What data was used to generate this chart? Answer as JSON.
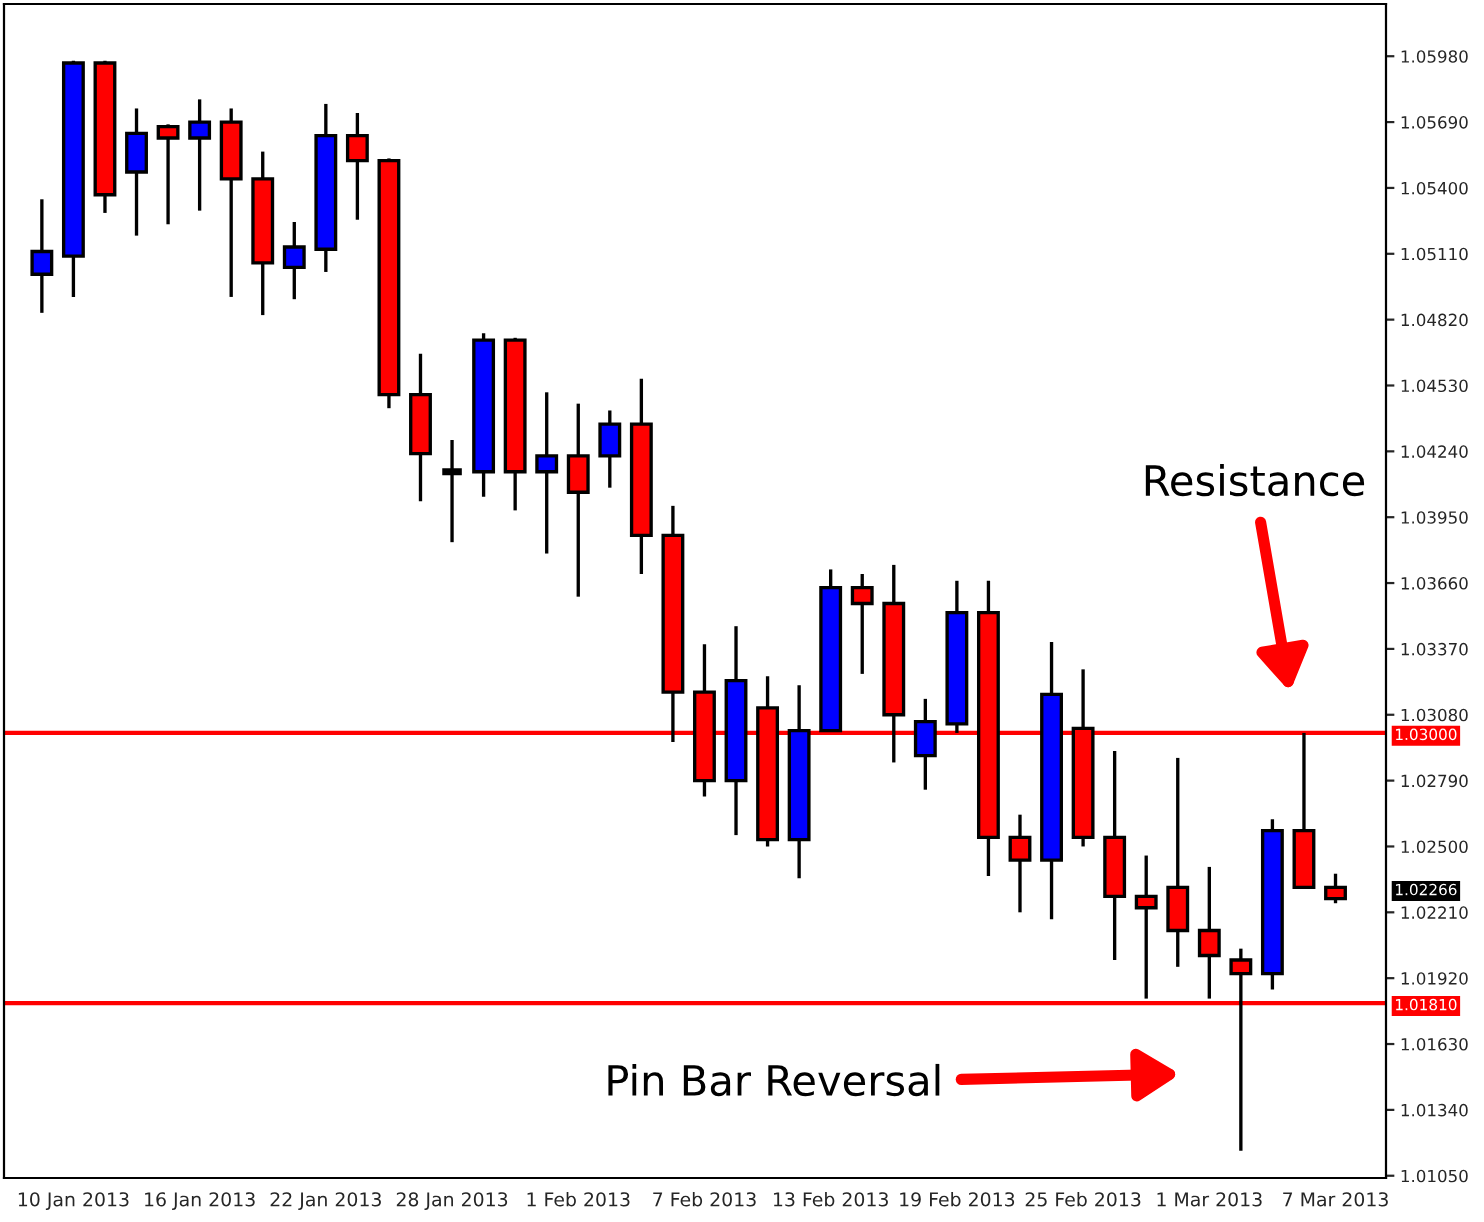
{
  "chart_data": {
    "type": "candlestick",
    "categories": [
      null,
      "10 Jan 2013",
      null,
      null,
      null,
      "16 Jan 2013",
      null,
      null,
      null,
      "22 Jan 2013",
      null,
      null,
      null,
      "28 Jan 2013",
      null,
      null,
      null,
      "1 Feb 2013",
      null,
      null,
      null,
      "7 Feb 2013",
      null,
      null,
      null,
      "13 Feb 2013",
      null,
      null,
      null,
      "19 Feb 2013",
      null,
      null,
      null,
      "25 Feb 2013",
      null,
      null,
      null,
      "1 Mar 2013",
      null,
      null,
      null,
      "7 Mar 2013"
    ],
    "ohlc": [
      [
        1.0502,
        1.0535,
        1.0485,
        1.0512
      ],
      [
        1.051,
        1.0596,
        1.0492,
        1.0595
      ],
      [
        1.0595,
        1.0596,
        1.0529,
        1.0537
      ],
      [
        1.0547,
        1.0575,
        1.0519,
        1.0564
      ],
      [
        1.0567,
        1.0568,
        1.0524,
        1.0562
      ],
      [
        1.0562,
        1.0579,
        1.053,
        1.0569
      ],
      [
        1.0569,
        1.0575,
        1.0492,
        1.0544
      ],
      [
        1.0544,
        1.0556,
        1.0484,
        1.0507
      ],
      [
        1.0505,
        1.0525,
        1.0491,
        1.0514
      ],
      [
        1.0513,
        1.0577,
        1.0503,
        1.0563
      ],
      [
        1.0563,
        1.0573,
        1.0526,
        1.0552
      ],
      [
        1.0552,
        1.0553,
        1.0443,
        1.0449
      ],
      [
        1.0449,
        1.0467,
        1.0402,
        1.0423
      ],
      [
        1.0415,
        1.0429,
        1.0384,
        1.0415
      ],
      [
        1.0415,
        1.0476,
        1.0404,
        1.0473
      ],
      [
        1.0473,
        1.0474,
        1.0398,
        1.0415
      ],
      [
        1.0415,
        1.045,
        1.0379,
        1.0422
      ],
      [
        1.0422,
        1.0445,
        1.036,
        1.0406
      ],
      [
        1.0422,
        1.0442,
        1.0408,
        1.0436
      ],
      [
        1.0436,
        1.0456,
        1.037,
        1.0387
      ],
      [
        1.0387,
        1.04,
        1.0296,
        1.0318
      ],
      [
        1.0318,
        1.0339,
        1.0272,
        1.0279
      ],
      [
        1.0279,
        1.0347,
        1.0255,
        1.0323
      ],
      [
        1.0311,
        1.0325,
        1.025,
        1.0253
      ],
      [
        1.0253,
        1.0321,
        1.0236,
        1.0301
      ],
      [
        1.0301,
        1.0372,
        1.0301,
        1.0364
      ],
      [
        1.0364,
        1.037,
        1.0326,
        1.0357
      ],
      [
        1.0357,
        1.0374,
        1.0287,
        1.0308
      ],
      [
        1.029,
        1.0315,
        1.0275,
        1.0305
      ],
      [
        1.0304,
        1.0367,
        1.03,
        1.0353
      ],
      [
        1.0353,
        1.0367,
        1.0237,
        1.0254
      ],
      [
        1.0254,
        1.0264,
        1.0221,
        1.0244
      ],
      [
        1.0244,
        1.034,
        1.0218,
        1.0317
      ],
      [
        1.0302,
        1.0328,
        1.025,
        1.0254
      ],
      [
        1.0254,
        1.0292,
        1.02,
        1.0228
      ],
      [
        1.0228,
        1.0246,
        1.0183,
        1.0223
      ],
      [
        1.0232,
        1.0289,
        1.0197,
        1.0213
      ],
      [
        1.0213,
        1.0241,
        1.0183,
        1.0202
      ],
      [
        1.02,
        1.0205,
        1.0116,
        1.0194
      ],
      [
        1.0194,
        1.0262,
        1.0187,
        1.0257
      ],
      [
        1.0257,
        1.03,
        1.0232,
        1.0232
      ],
      [
        1.0232,
        1.0238,
        1.0225,
        1.0227
      ]
    ],
    "colors": [
      "#0000ff",
      "#0000ff",
      "#ff0000",
      "#0000ff",
      "#ff0000",
      "#0000ff",
      "#ff0000",
      "#ff0000",
      "#0000ff",
      "#0000ff",
      "#ff0000",
      "#ff0000",
      "#ff0000",
      "#000000",
      "#0000ff",
      "#ff0000",
      "#0000ff",
      "#ff0000",
      "#0000ff",
      "#ff0000",
      "#ff0000",
      "#ff0000",
      "#0000ff",
      "#ff0000",
      "#0000ff",
      "#0000ff",
      "#ff0000",
      "#ff0000",
      "#0000ff",
      "#0000ff",
      "#ff0000",
      "#ff0000",
      "#0000ff",
      "#ff0000",
      "#ff0000",
      "#ff0000",
      "#ff0000",
      "#ff0000",
      "#ff0000",
      "#0000ff",
      "#ff0000",
      "#ff0000"
    ],
    "ylim": [
      1.0104,
      1.0621
    ],
    "yticks": [
      {
        "value": 1.0105,
        "label": "1.01050"
      },
      {
        "value": 1.0134,
        "label": "1.01340"
      },
      {
        "value": 1.0163,
        "label": "1.01630"
      },
      {
        "value": 1.0192,
        "label": "1.01920"
      },
      {
        "value": 1.0221,
        "label": "1.02210"
      },
      {
        "value": 1.025,
        "label": "1.02500"
      },
      {
        "value": 1.0279,
        "label": "1.02790"
      },
      {
        "value": 1.0308,
        "label": "1.03080"
      },
      {
        "value": 1.0337,
        "label": "1.03370"
      },
      {
        "value": 1.0366,
        "label": "1.03660"
      },
      {
        "value": 1.0395,
        "label": "1.03950"
      },
      {
        "value": 1.0424,
        "label": "1.04240"
      },
      {
        "value": 1.0453,
        "label": "1.04530"
      },
      {
        "value": 1.0482,
        "label": "1.04820"
      },
      {
        "value": 1.0511,
        "label": "1.05110"
      },
      {
        "value": 1.054,
        "label": "1.05400"
      },
      {
        "value": 1.0569,
        "label": "1.05690"
      },
      {
        "value": 1.0598,
        "label": "1.05980"
      }
    ],
    "ref_lines": [
      {
        "axis": "y",
        "value": 1.03,
        "label": "1.03000",
        "color": "#ff0000"
      },
      {
        "axis": "y",
        "value": 1.0181,
        "label": "1.01810",
        "color": "#ff0000"
      }
    ],
    "annotations": [
      "Resistance",
      "Pin Bar Reversal",
      "1.02266"
    ],
    "grid": false,
    "legend": false
  }
}
